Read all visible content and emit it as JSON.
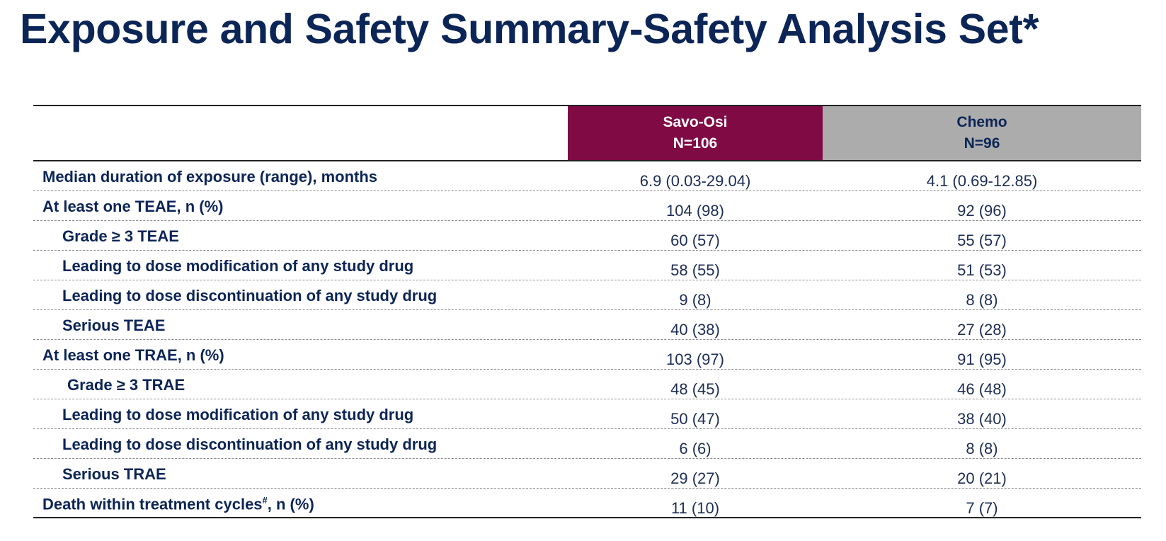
{
  "title": "Exposure and Safety Summary-Safety Analysis Set*",
  "colors": {
    "title": "#0c2557",
    "savo_header_bg": "#7f0a44",
    "chemo_header_bg": "#acacac"
  },
  "table": {
    "columns": [
      {
        "name": "Savo-Osi",
        "n": "N=106"
      },
      {
        "name": "Chemo",
        "n": "N=96"
      }
    ],
    "rows": [
      {
        "label": "Median duration of exposure (range), months",
        "savo": "6.9 (0.03-29.04)",
        "chemo": "4.1 (0.69-12.85)"
      },
      {
        "label": "At least one TEAE, n (%)",
        "savo": "104 (98)",
        "chemo": "92 (96)"
      },
      {
        "label": "Grade ≥ 3 TEAE",
        "savo": "60 (57)",
        "chemo": "55 (57)"
      },
      {
        "label": "Leading to dose modification of any study drug",
        "savo": "58 (55)",
        "chemo": "51 (53)"
      },
      {
        "label": "Leading to dose discontinuation of any study drug",
        "savo": "9 (8)",
        "chemo": "8 (8)"
      },
      {
        "label": "Serious TEAE",
        "savo": "40 (38)",
        "chemo": "27 (28)"
      },
      {
        "label": "At least one TRAE, n (%)",
        "savo": "103 (97)",
        "chemo": "91 (95)"
      },
      {
        "label": "Grade ≥ 3 TRAE",
        "savo": "48 (45)",
        "chemo": "46 (48)"
      },
      {
        "label": "Leading to dose modification of any study drug",
        "savo": "50 (47)",
        "chemo": "38 (40)"
      },
      {
        "label": "Leading to dose discontinuation of any study drug",
        "savo": "6 (6)",
        "chemo": "8 (8)"
      },
      {
        "label": "Serious TRAE",
        "savo": "29 (27)",
        "chemo": "20 (21)"
      },
      {
        "label_main": "Death within treatment cycles",
        "label_sup": "#",
        "label_tail": ", n (%)",
        "savo": "11 (10)",
        "chemo": "7 (7)"
      }
    ]
  }
}
